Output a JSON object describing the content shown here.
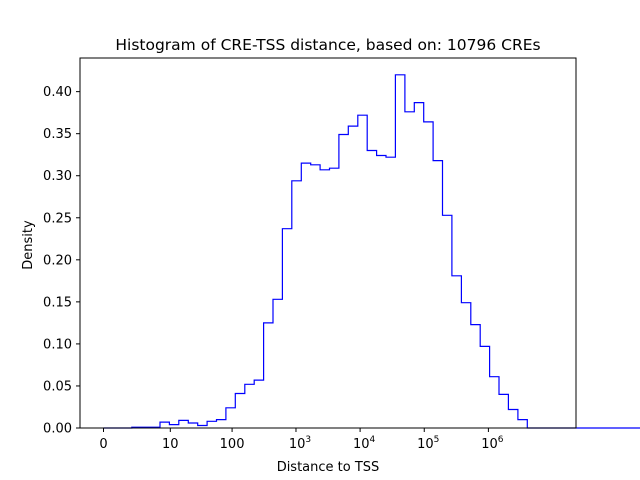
{
  "chart_data": {
    "type": "histogram",
    "title": "Histogram of CRE-TSS distance, based on: 10796 CREs",
    "xlabel": "Distance to TSS",
    "ylabel": "Density",
    "ylim": [
      0,
      0.44
    ],
    "grid": false,
    "legend": "none",
    "x_scale": "symlog (log10(d+1))",
    "x_ticks": [
      {
        "value": 0,
        "label": "0"
      },
      {
        "value": 10,
        "label": "10"
      },
      {
        "value": 100,
        "label": "100"
      },
      {
        "value": 1000,
        "label": "10",
        "exp": "3"
      },
      {
        "value": 10000,
        "label": "10",
        "exp": "4"
      },
      {
        "value": 100000,
        "label": "10",
        "exp": "5"
      },
      {
        "value": 1000000,
        "label": "10",
        "exp": "6"
      }
    ],
    "y_ticks": [
      {
        "value": 0.0,
        "label": "0.00"
      },
      {
        "value": 0.05,
        "label": "0.05"
      },
      {
        "value": 0.1,
        "label": "0.10"
      },
      {
        "value": 0.15,
        "label": "0.15"
      },
      {
        "value": 0.2,
        "label": "0.20"
      },
      {
        "value": 0.25,
        "label": "0.25"
      },
      {
        "value": 0.3,
        "label": "0.30"
      },
      {
        "value": 0.35,
        "label": "0.35"
      },
      {
        "value": 0.4,
        "label": "0.40"
      }
    ],
    "bin_start_log10": 0.0,
    "bin_width_log10": 0.1468,
    "densities": [
      0.0,
      0.0,
      0.0,
      0.001,
      0.001,
      0.001,
      0.007,
      0.004,
      0.009,
      0.006,
      0.003,
      0.008,
      0.01,
      0.024,
      0.041,
      0.052,
      0.057,
      0.125,
      0.153,
      0.237,
      0.294,
      0.315,
      0.313,
      0.307,
      0.309,
      0.349,
      0.359,
      0.372,
      0.33,
      0.324,
      0.322,
      0.42,
      0.376,
      0.387,
      0.364,
      0.318,
      0.253,
      0.181,
      0.149,
      0.123,
      0.097,
      0.061,
      0.04,
      0.022,
      0.01,
      0.0,
      0.0,
      0.0,
      0.0,
      0.0,
      0.0,
      0.0,
      0.0,
      0.0,
      0.0,
      0.0,
      0.0,
      0.0,
      0.0,
      0.01
    ],
    "colors": {
      "line": "#0000ff",
      "axes": "#000000",
      "background": "#ffffff"
    }
  }
}
